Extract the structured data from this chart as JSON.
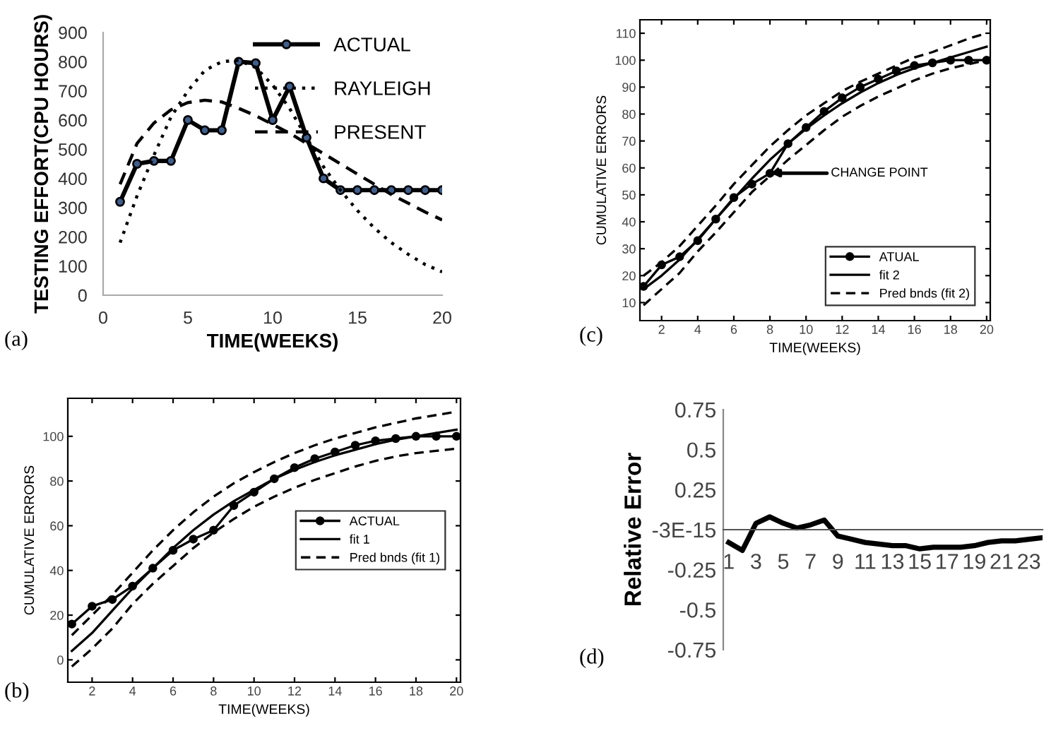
{
  "chart_data": [
    {
      "type": "line",
      "xlabel": "TIME(WEEKS)",
      "ylabel": "TESTING EFFORT(CPU HOURS)",
      "x": [
        1,
        2,
        3,
        4,
        5,
        6,
        7,
        8,
        9,
        10,
        11,
        12,
        13,
        14,
        15,
        16,
        17,
        18,
        19,
        20
      ],
      "xlim": [
        0,
        20
      ],
      "xticks": [
        0,
        5,
        10,
        15,
        20
      ],
      "ylim": [
        0,
        900
      ],
      "yticks": [
        0,
        100,
        200,
        300,
        400,
        500,
        600,
        700,
        800,
        900
      ],
      "grid": false,
      "legend": "top right",
      "annotations": [
        "(a)"
      ],
      "series": [
        {
          "name": "ACTUAL",
          "color": "#000000",
          "marker": "circle",
          "line_style": "solid",
          "values": [
            320,
            450,
            460,
            460,
            600,
            565,
            565,
            800,
            795,
            600,
            715,
            540,
            400,
            360,
            360,
            360,
            360,
            360,
            360,
            360
          ]
        },
        {
          "name": "RAYLEIGH",
          "color": "#000000",
          "marker": "none",
          "line_style": "dotted",
          "values": [
            180,
            340,
            480,
            610,
            700,
            770,
            800,
            805,
            780,
            720,
            640,
            540,
            440,
            360,
            290,
            230,
            180,
            140,
            105,
            80
          ]
        },
        {
          "name": "PRESENT",
          "color": "#000000",
          "marker": "none",
          "line_style": "dashed",
          "values": [
            380,
            520,
            590,
            635,
            660,
            668,
            662,
            640,
            615,
            585,
            555,
            520,
            485,
            450,
            415,
            380,
            345,
            315,
            285,
            258
          ]
        }
      ]
    },
    {
      "type": "line",
      "xlabel": "TIME(WEEKS)",
      "ylabel": "CUMULATIVE ERRORS",
      "x": [
        1,
        2,
        3,
        4,
        5,
        6,
        7,
        8,
        9,
        10,
        11,
        12,
        13,
        14,
        15,
        16,
        17,
        18,
        19,
        20
      ],
      "xlim": [
        0.8,
        20.2
      ],
      "xticks": [
        2,
        4,
        6,
        8,
        10,
        12,
        14,
        16,
        18,
        20
      ],
      "ylim": [
        3.3,
        115
      ],
      "yticks": [
        10,
        20,
        30,
        40,
        50,
        60,
        70,
        80,
        90,
        100,
        110
      ],
      "grid": false,
      "legend": "bottom right",
      "annotations": [
        "CHANGE POINT",
        "(c)"
      ],
      "series": [
        {
          "name": "ATUAL",
          "color": "#000000",
          "marker": "circle",
          "line_style": "solid",
          "values": [
            16,
            24,
            27,
            33,
            41,
            49,
            54,
            58,
            69,
            75,
            81,
            86,
            90,
            93,
            96,
            98,
            99,
            100,
            100,
            100
          ]
        },
        {
          "name": "fit 2",
          "color": "#000000",
          "marker": "none",
          "line_style": "solid",
          "values": [
            15,
            20,
            26,
            33.5,
            41,
            48.5,
            56,
            63,
            69,
            74.5,
            79.5,
            84,
            88,
            91.5,
            94.5,
            97,
            99,
            101,
            103,
            105
          ]
        },
        {
          "name": "Pred bnds (fit 2)",
          "color": "#000000",
          "marker": "none",
          "line_style": "dashed",
          "values": [
            20,
            25,
            31,
            38.5,
            46,
            54,
            61,
            68,
            74,
            79.5,
            84,
            88.5,
            92,
            95,
            98,
            101,
            103,
            105.5,
            108,
            110
          ]
        },
        {
          "color": "#000000",
          "marker": "none",
          "line_style": "dashed",
          "values": [
            9,
            15,
            21,
            29,
            36,
            43.5,
            51,
            57,
            63,
            68.5,
            74,
            79,
            83,
            86.5,
            89.5,
            92.5,
            95,
            97,
            98.5,
            100
          ]
        }
      ]
    },
    {
      "type": "line",
      "xlabel": "TIME(WEEKS)",
      "ylabel": "CUMULATIVE ERRORS",
      "x": [
        1,
        2,
        3,
        4,
        5,
        6,
        7,
        8,
        9,
        10,
        11,
        12,
        13,
        14,
        15,
        16,
        17,
        18,
        19,
        20
      ],
      "xlim": [
        0.8,
        20.2
      ],
      "xticks": [
        2,
        4,
        6,
        8,
        10,
        12,
        14,
        16,
        18,
        20
      ],
      "ylim": [
        -10,
        117
      ],
      "yticks": [
        0,
        20,
        40,
        60,
        80,
        100
      ],
      "grid": false,
      "legend": "right",
      "annotations": [
        "(b)"
      ],
      "series": [
        {
          "name": "ACTUAL",
          "color": "#000000",
          "marker": "circle",
          "line_style": "solid",
          "values": [
            16,
            24,
            27,
            33,
            41,
            49,
            54,
            58,
            69,
            75,
            81,
            86,
            90,
            93,
            96,
            98,
            99,
            100,
            100,
            100
          ]
        },
        {
          "name": "fit 1",
          "color": "#000000",
          "marker": "none",
          "line_style": "solid",
          "values": [
            4,
            12,
            22,
            32,
            41,
            50,
            58,
            65,
            71,
            76,
            81,
            85,
            88.5,
            91.5,
            94,
            96.5,
            98.5,
            100,
            101.5,
            103
          ]
        },
        {
          "name": "Pred bnds (fit 1)",
          "color": "#000000",
          "marker": "none",
          "line_style": "dashed",
          "values": [
            11,
            20,
            29,
            39,
            49,
            58,
            66,
            73,
            79,
            84,
            88.5,
            92.5,
            96,
            99,
            101.5,
            104,
            106,
            108,
            109.5,
            111
          ]
        },
        {
          "color": "#000000",
          "marker": "none",
          "line_style": "dashed",
          "values": [
            -3,
            5,
            14,
            25,
            34,
            42,
            50,
            57,
            63,
            68.5,
            73,
            77,
            80.5,
            83.5,
            86.5,
            89,
            91,
            92.5,
            93.5,
            94.5
          ]
        }
      ]
    },
    {
      "type": "line",
      "ylabel": "Relative Error",
      "categories": [
        "1",
        null,
        "3",
        null,
        "5",
        null,
        "7",
        null,
        "9",
        null,
        "11",
        null,
        "13",
        null,
        "15",
        null,
        "17",
        null,
        "19",
        null,
        "21",
        null,
        "23",
        null
      ],
      "ylim": [
        -0.75,
        0.75
      ],
      "yticks": [
        0.75,
        0.5,
        0.25,
        {
          "value": 0,
          "label": "-3E-15"
        },
        -0.25,
        -0.5,
        -0.75
      ],
      "grid": false,
      "legend": false,
      "annotations": [
        "(d)"
      ],
      "series": [
        {
          "color": "#000000",
          "marker": "none",
          "line_style": "solid",
          "values": [
            -0.08,
            -0.13,
            0.04,
            0.08,
            0.04,
            0.01,
            0.03,
            0.06,
            -0.04,
            -0.06,
            -0.08,
            -0.09,
            -0.1,
            -0.1,
            -0.12,
            -0.11,
            -0.11,
            -0.11,
            -0.1,
            -0.08,
            -0.07,
            -0.07,
            -0.06,
            -0.05
          ]
        }
      ]
    }
  ]
}
